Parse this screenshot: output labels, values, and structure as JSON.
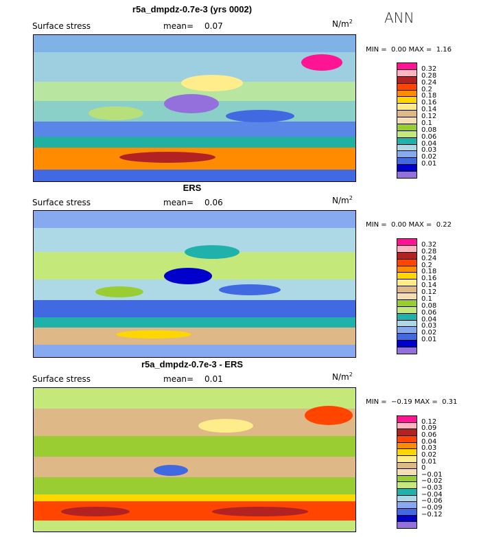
{
  "season_label": "ANN",
  "panels": [
    {
      "title": "r5a_dmpdz-0.7e-3 (yrs 0002)",
      "field": "Surface stress",
      "mean_label": "mean=",
      "mean_value": "0.07",
      "units": "N/m",
      "units_exp": "2",
      "min_label": "MIN =",
      "min_value": "0.00",
      "max_label": "MAX =",
      "max_value": "1.16",
      "levels": [
        "0.32",
        "0.28",
        "0.24",
        "0.2",
        "0.18",
        "0.16",
        "0.14",
        "0.12",
        "0.1",
        "0.08",
        "0.06",
        "0.04",
        "0.03",
        "0.02",
        "0.01"
      ],
      "colors": [
        "#ff1493",
        "#ffb6c1",
        "#b22222",
        "#ff4500",
        "#ff8c00",
        "#ffd700",
        "#ffec8b",
        "#deb887",
        "#f5deb3",
        "#9acd32",
        "#c5e87a",
        "#20b2aa",
        "#add8e6",
        "#87a9f0",
        "#4169e1",
        "#0000cd",
        "#9370db"
      ]
    },
    {
      "title": "ERS",
      "field": "Surface stress",
      "mean_label": "mean=",
      "mean_value": "0.06",
      "units": "N/m",
      "units_exp": "2",
      "min_label": "MIN =",
      "min_value": "0.00",
      "max_label": "MAX =",
      "max_value": "0.22",
      "levels": [
        "0.32",
        "0.28",
        "0.24",
        "0.2",
        "0.18",
        "0.16",
        "0.14",
        "0.12",
        "0.1",
        "0.08",
        "0.06",
        "0.04",
        "0.03",
        "0.02",
        "0.01"
      ],
      "colors": [
        "#ff1493",
        "#ffb6c1",
        "#b22222",
        "#ff4500",
        "#ff8c00",
        "#ffd700",
        "#ffec8b",
        "#deb887",
        "#f5deb3",
        "#9acd32",
        "#c5e87a",
        "#20b2aa",
        "#add8e6",
        "#87a9f0",
        "#4169e1",
        "#0000cd",
        "#9370db"
      ]
    },
    {
      "title": "r5a_dmpdz-0.7e-3 - ERS",
      "field": "Surface stress",
      "mean_label": "mean=",
      "mean_value": "0.01",
      "units": "N/m",
      "units_exp": "2",
      "min_label": "MIN =",
      "min_value": "−0.19",
      "max_label": "MAX =",
      "max_value": "0.31",
      "levels": [
        "0.12",
        "0.09",
        "0.06",
        "0.04",
        "0.03",
        "0.02",
        "0.01",
        "0",
        "−0.01",
        "−0.02",
        "−0.03",
        "−0.04",
        "−0.06",
        "−0.09",
        "−0.12"
      ],
      "colors": [
        "#ff1493",
        "#ffb6c1",
        "#b22222",
        "#ff4500",
        "#ff8c00",
        "#ffd700",
        "#ffec8b",
        "#deb887",
        "#f5deb3",
        "#9acd32",
        "#c5e87a",
        "#20b2aa",
        "#add8e6",
        "#87a9f0",
        "#4169e1",
        "#0000cd",
        "#9370db"
      ]
    }
  ]
}
